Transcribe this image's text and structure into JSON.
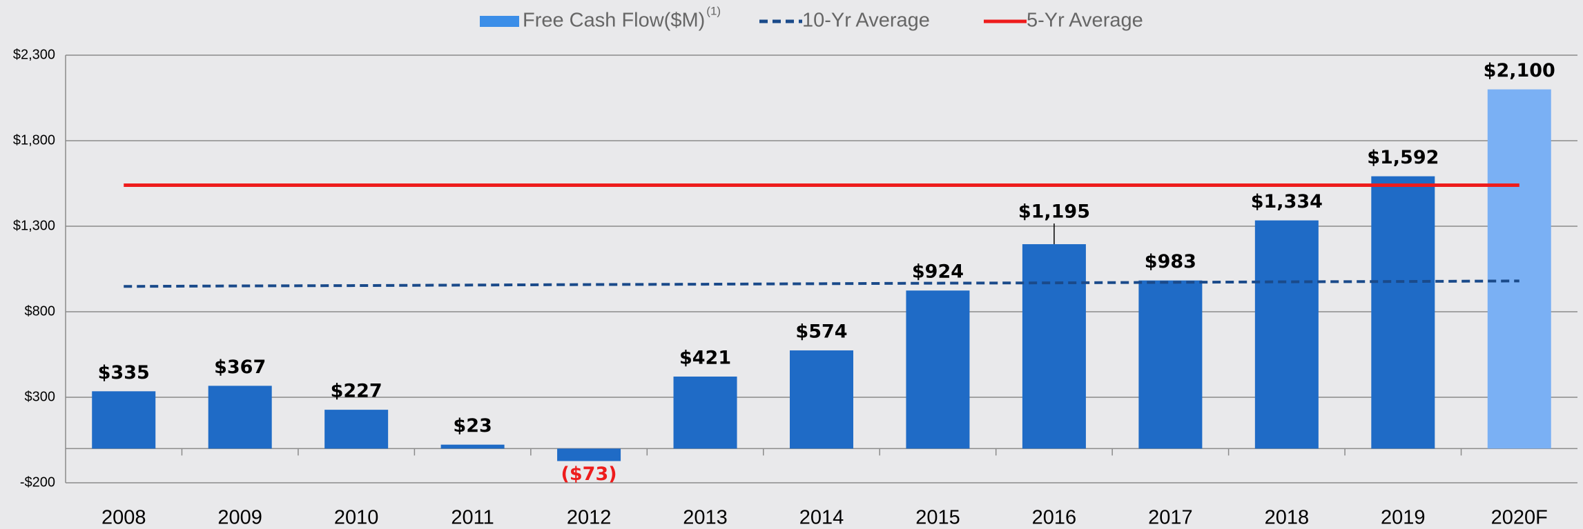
{
  "chart_data": {
    "type": "bar",
    "categories": [
      "2008",
      "2009",
      "2010",
      "2011",
      "2012",
      "2013",
      "2014",
      "2015",
      "2016",
      "2017",
      "2018",
      "2019",
      "2020F"
    ],
    "series": [
      {
        "name": "Free Cash Flow($M)",
        "name_note": "(1)",
        "type": "bar",
        "color": "#3b8ee8",
        "colors": [
          "#1f6bc6",
          "#1f6bc6",
          "#1f6bc6",
          "#1f6bc6",
          "#1f6bc6",
          "#1f6bc6",
          "#1f6bc6",
          "#1f6bc6",
          "#1f6bc6",
          "#1f6bc6",
          "#1f6bc6",
          "#1f6bc6",
          "#7ab0f4"
        ],
        "values": [
          335,
          367,
          227,
          23,
          -73,
          421,
          574,
          924,
          1195,
          983,
          1334,
          1592,
          2100
        ],
        "value_labels": [
          "$335",
          "$367",
          "$227",
          "$23",
          "($73)",
          "$421",
          "$574",
          "$924",
          "$1,195",
          "$983",
          "$1,334",
          "$1,592",
          "$2,100"
        ]
      },
      {
        "name": "10-Yr Average",
        "type": "line",
        "style": "dashed",
        "color": "#1a4a8a",
        "values": [
          948,
          951,
          953,
          956,
          959,
          961,
          964,
          967,
          969,
          972,
          975,
          977,
          980
        ]
      },
      {
        "name": "5-Yr Average",
        "type": "line",
        "style": "solid",
        "color": "#ee1c1c",
        "values": [
          1540,
          1540,
          1540,
          1540,
          1540,
          1540,
          1540,
          1540,
          1540,
          1540,
          1540,
          1540,
          1540
        ]
      }
    ],
    "negative_label_color": "#ee1c1c",
    "ylim": [
      -200,
      2300
    ],
    "yticks": [
      {
        "value": -200,
        "label": "-$200"
      },
      {
        "value": 300,
        "label": "$300"
      },
      {
        "value": 800,
        "label": "$800"
      },
      {
        "value": 1300,
        "label": "$1,300"
      },
      {
        "value": 1800,
        "label": "$1,800"
      },
      {
        "value": 2300,
        "label": "$2,300"
      }
    ],
    "grid": true,
    "legend": "top"
  }
}
